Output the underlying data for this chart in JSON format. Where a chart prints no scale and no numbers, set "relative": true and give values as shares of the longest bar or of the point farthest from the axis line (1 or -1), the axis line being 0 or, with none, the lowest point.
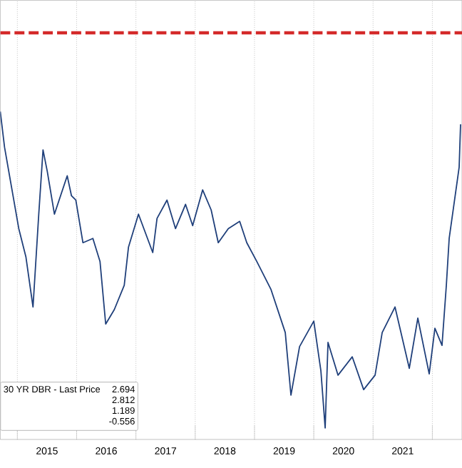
{
  "chart_data": {
    "type": "line",
    "relative": true,
    "xlim": [
      2014.712,
      2022.5
    ],
    "xticks": [
      {
        "value": 2015,
        "label": null
      },
      {
        "value": 2015.5,
        "label": "2015"
      },
      {
        "value": 2016,
        "label": null
      },
      {
        "value": 2016.5,
        "label": "2016"
      },
      {
        "value": 2017,
        "label": null
      },
      {
        "value": 2017.5,
        "label": "2017"
      },
      {
        "value": 2018,
        "label": null
      },
      {
        "value": 2018.5,
        "label": "2018"
      },
      {
        "value": 2019,
        "label": null
      },
      {
        "value": 2019.5,
        "label": "2019"
      },
      {
        "value": 2020,
        "label": null
      },
      {
        "value": 2020.5,
        "label": "2020"
      },
      {
        "value": 2021,
        "label": null
      },
      {
        "value": 2021.5,
        "label": "2021"
      },
      {
        "value": 2022,
        "label": null
      }
    ],
    "grid": "x",
    "legend": "bottom left",
    "series": [
      {
        "name": "30 YR DBR - Last Price",
        "color": "#1f3f7a",
        "x": [
          2014.712,
          2014.784,
          2015.024,
          2015.144,
          2015.264,
          2015.361,
          2015.433,
          2015.505,
          2015.625,
          2015.841,
          2015.913,
          2015.986,
          2016.106,
          2016.274,
          2016.394,
          2016.49,
          2016.635,
          2016.803,
          2016.875,
          2017.043,
          2017.284,
          2017.356,
          2017.524,
          2017.668,
          2017.837,
          2017.957,
          2018.125,
          2018.269,
          2018.389,
          2018.558,
          2018.75,
          2018.87,
          2019.038,
          2019.279,
          2019.519,
          2019.615,
          2019.76,
          2020.0,
          2020.12,
          2020.192,
          2020.24,
          2020.409,
          2020.649,
          2020.841,
          2021.034,
          2021.154,
          2021.37,
          2021.611,
          2021.755,
          2021.947,
          2022.043,
          2022.163,
          2022.236,
          2022.284,
          2022.452,
          2022.476
        ],
        "values": [
          1.0,
          0.891,
          0.643,
          0.557,
          0.404,
          0.687,
          0.883,
          0.817,
          0.687,
          0.804,
          0.743,
          0.73,
          0.6,
          0.613,
          0.543,
          0.352,
          0.396,
          0.47,
          0.587,
          0.687,
          0.57,
          0.674,
          0.73,
          0.643,
          0.717,
          0.652,
          0.761,
          0.7,
          0.6,
          0.643,
          0.665,
          0.6,
          0.543,
          0.457,
          0.326,
          0.135,
          0.283,
          0.361,
          0.209,
          0.035,
          0.296,
          0.196,
          0.252,
          0.152,
          0.196,
          0.326,
          0.404,
          0.217,
          0.37,
          0.2,
          0.339,
          0.287,
          0.47,
          0.613,
          0.83,
          0.961
        ]
      }
    ],
    "ref_lines": [
      {
        "axis": "y",
        "value": 1.24,
        "color": "#d42a2a",
        "line_style": "dashed"
      }
    ],
    "annotations": [
      "2.694",
      "2.812",
      "1.189",
      "-0.556"
    ]
  }
}
